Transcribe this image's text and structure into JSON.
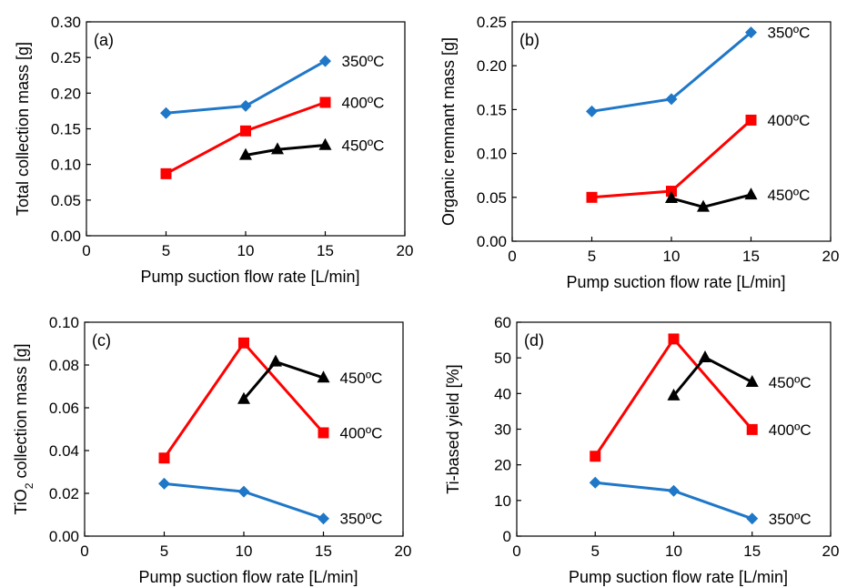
{
  "chart_data": [
    {
      "type": "line",
      "panel_label": "(a)",
      "xlabel": "Pump suction flow rate [L/min]",
      "ylabel": "Total collection mass [g]",
      "xlim": [
        0,
        20
      ],
      "ylim": [
        0,
        0.3
      ],
      "xticks": [
        0,
        5,
        10,
        15,
        20
      ],
      "xtick_labels": [
        "0",
        "5",
        "10",
        "15",
        "20"
      ],
      "yticks": [
        0,
        0.05,
        0.1,
        0.15,
        0.2,
        0.25,
        0.3
      ],
      "ytick_labels": [
        "0.00",
        "0.05",
        "0.10",
        "0.15",
        "0.20",
        "0.25",
        "0.30"
      ],
      "grid": false,
      "series": [
        {
          "name": "350ºC",
          "color": "#1f77c8",
          "marker": "diamond",
          "x": [
            5,
            10,
            15
          ],
          "y": [
            0.172,
            0.182,
            0.245
          ]
        },
        {
          "name": "400ºC",
          "color": "#ff0000",
          "marker": "square",
          "x": [
            5,
            10,
            15
          ],
          "y": [
            0.087,
            0.147,
            0.187
          ]
        },
        {
          "name": "450ºC",
          "color": "#000000",
          "marker": "triangle",
          "x": [
            10,
            12,
            15
          ],
          "y": [
            0.113,
            0.121,
            0.127
          ]
        }
      ]
    },
    {
      "type": "line",
      "panel_label": "(b)",
      "xlabel": "Pump suction flow rate [L/min]",
      "ylabel": "Organic remnant mass [g]",
      "xlim": [
        0,
        20
      ],
      "ylim": [
        0,
        0.25
      ],
      "xticks": [
        0,
        5,
        10,
        15,
        20
      ],
      "xtick_labels": [
        "0",
        "5",
        "10",
        "15",
        "20"
      ],
      "yticks": [
        0,
        0.05,
        0.1,
        0.15,
        0.2,
        0.25
      ],
      "ytick_labels": [
        "0.00",
        "0.05",
        "0.10",
        "0.15",
        "0.20",
        "0.25"
      ],
      "grid": false,
      "series": [
        {
          "name": "350ºC",
          "color": "#1f77c8",
          "marker": "diamond",
          "x": [
            5,
            10,
            15
          ],
          "y": [
            0.148,
            0.162,
            0.238
          ]
        },
        {
          "name": "400ºC",
          "color": "#ff0000",
          "marker": "square",
          "x": [
            5,
            10,
            15
          ],
          "y": [
            0.05,
            0.057,
            0.138
          ]
        },
        {
          "name": "450ºC",
          "color": "#000000",
          "marker": "triangle",
          "x": [
            10,
            12,
            15
          ],
          "y": [
            0.049,
            0.039,
            0.053
          ]
        }
      ]
    },
    {
      "type": "line",
      "panel_label": "(c)",
      "xlabel": "Pump suction flow rate [L/min]",
      "ylabel": "TiO2 collection mass [g]",
      "xlim": [
        0,
        20
      ],
      "ylim": [
        0,
        0.1
      ],
      "xticks": [
        0,
        5,
        10,
        15,
        20
      ],
      "xtick_labels": [
        "0",
        "5",
        "10",
        "15",
        "20"
      ],
      "yticks": [
        0,
        0.02,
        0.04,
        0.06,
        0.08,
        0.1
      ],
      "ytick_labels": [
        "0.00",
        "0.02",
        "0.04",
        "0.06",
        "0.08",
        "0.10"
      ],
      "grid": false,
      "series": [
        {
          "name": "350ºC",
          "color": "#1f77c8",
          "marker": "diamond",
          "x": [
            5,
            10,
            15
          ],
          "y": [
            0.0245,
            0.0208,
            0.0082
          ]
        },
        {
          "name": "400ºC",
          "color": "#ff0000",
          "marker": "square",
          "x": [
            5,
            10,
            15
          ],
          "y": [
            0.0365,
            0.0903,
            0.0483
          ]
        },
        {
          "name": "450ºC",
          "color": "#000000",
          "marker": "triangle",
          "x": [
            10,
            12,
            15
          ],
          "y": [
            0.064,
            0.0815,
            0.074
          ]
        }
      ]
    },
    {
      "type": "line",
      "panel_label": "(d)",
      "xlabel": "Pump suction flow rate [L/min]",
      "ylabel": "Ti-based yield [%]",
      "xlim": [
        0,
        20
      ],
      "ylim": [
        0,
        60
      ],
      "xticks": [
        0,
        5,
        10,
        15,
        20
      ],
      "xtick_labels": [
        "0",
        "5",
        "10",
        "15",
        "20"
      ],
      "yticks": [
        0,
        10,
        20,
        30,
        40,
        50,
        60
      ],
      "ytick_labels": [
        "0",
        "10",
        "20",
        "30",
        "40",
        "50",
        "60"
      ],
      "grid": false,
      "series": [
        {
          "name": "350ºC",
          "color": "#1f77c8",
          "marker": "diamond",
          "x": [
            5,
            10,
            15
          ],
          "y": [
            15.0,
            12.7,
            4.9
          ]
        },
        {
          "name": "400ºC",
          "color": "#ff0000",
          "marker": "square",
          "x": [
            5,
            10,
            15
          ],
          "y": [
            22.4,
            55.3,
            29.9
          ]
        },
        {
          "name": "450ºC",
          "color": "#000000",
          "marker": "triangle",
          "x": [
            10,
            12,
            15
          ],
          "y": [
            39.4,
            50.1,
            43.2
          ]
        }
      ]
    }
  ]
}
